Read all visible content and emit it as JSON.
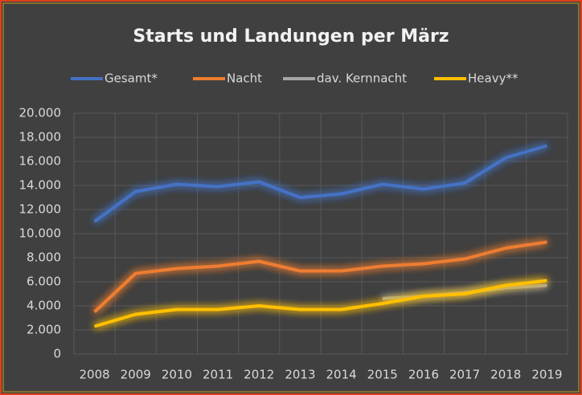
{
  "chart_data": {
    "type": "line",
    "title": "Starts und Landungen per März",
    "categories": [
      "2008",
      "2009",
      "2010",
      "2011",
      "2012",
      "2013",
      "2014",
      "2015",
      "2016",
      "2017",
      "2018",
      "2019"
    ],
    "series": [
      {
        "name": "Gesamt*",
        "color": "#4472c4",
        "values": [
          11000,
          13500,
          14100,
          13900,
          14300,
          13000,
          13300,
          14100,
          13700,
          14200,
          16300,
          17300
        ]
      },
      {
        "name": "Nacht",
        "color": "#ed7d31",
        "values": [
          3500,
          6700,
          7100,
          7300,
          7700,
          6900,
          6900,
          7300,
          7500,
          7900,
          8800,
          9300
        ]
      },
      {
        "name": "dav. Kernnacht",
        "color": "#a5a5a5",
        "values": [
          null,
          null,
          null,
          null,
          null,
          null,
          null,
          4600,
          4800,
          5100,
          5500,
          5700
        ]
      },
      {
        "name": "Heavy**",
        "color": "#ffc000",
        "values": [
          2300,
          3300,
          3700,
          3700,
          4000,
          3700,
          3700,
          4200,
          4800,
          5000,
          5700,
          6100
        ]
      }
    ],
    "ylim": [
      0,
      20000
    ],
    "yticks": [
      0,
      {
        "value": 2000,
        "label": "2.000"
      },
      {
        "value": 4000,
        "label": "4.000"
      },
      {
        "value": 6000,
        "label": "6.000"
      },
      {
        "value": 8000,
        "label": "8.000"
      },
      {
        "value": 10000,
        "label": "10.000"
      },
      {
        "value": 12000,
        "label": "12.000"
      },
      {
        "value": 14000,
        "label": "14.000"
      },
      {
        "value": 16000,
        "label": "16.000"
      },
      {
        "value": 18000,
        "label": "18.000"
      },
      {
        "value": 20000,
        "label": "20.000"
      }
    ],
    "grid": true,
    "legend": "top"
  }
}
